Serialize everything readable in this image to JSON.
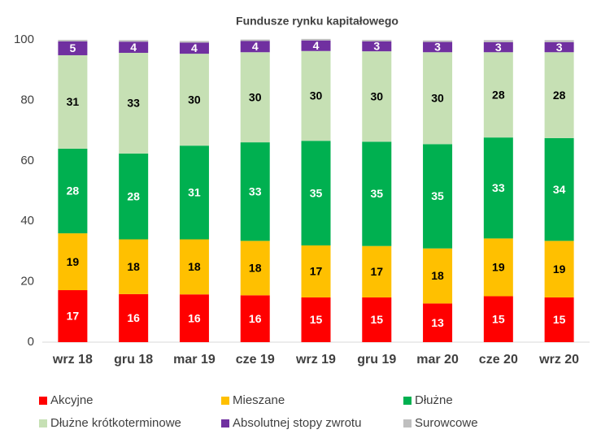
{
  "chart_data": {
    "type": "stacked_bar",
    "title": "Fundusze rynku kapitałowego",
    "categories": [
      "wrz 18",
      "gru 18",
      "mar 19",
      "cze 19",
      "wrz 19",
      "gru 19",
      "mar 20",
      "cze 20",
      "wrz 20"
    ],
    "series": [
      {
        "name": "Akcyjne",
        "color": "#ff0000",
        "label_color": "#ffffff",
        "values": [
          17.2,
          15.9,
          15.8,
          15.5,
          14.8,
          14.8,
          12.8,
          15.2,
          14.8
        ],
        "value_labels": [
          "17",
          "16",
          "16",
          "16",
          "15",
          "15",
          "13",
          "15",
          "15"
        ]
      },
      {
        "name": "Mieszane",
        "color": "#ffc000",
        "label_color": "#000000",
        "values": [
          18.8,
          18.1,
          18.2,
          18.0,
          17.2,
          17.0,
          18.2,
          19.1,
          18.7
        ],
        "value_labels": [
          "19",
          "18",
          "18",
          "18",
          "17",
          "17",
          "18",
          "19",
          "19"
        ]
      },
      {
        "name": "Dłużne",
        "color": "#00b050",
        "label_color": "#ffffff",
        "values": [
          28.0,
          28.4,
          31.0,
          32.6,
          34.6,
          34.5,
          34.5,
          33.4,
          34.0
        ],
        "value_labels": [
          "28",
          "28",
          "31",
          "33",
          "35",
          "35",
          "35",
          "33",
          "34"
        ]
      },
      {
        "name": "Dłużne krótkoterminowe",
        "color": "#c6e0b4",
        "label_color": "#000000",
        "values": [
          30.9,
          33.3,
          30.4,
          29.8,
          29.7,
          29.9,
          30.4,
          28.2,
          28.4
        ],
        "value_labels": [
          "31",
          "33",
          "30",
          "30",
          "30",
          "30",
          "30",
          "28",
          "28"
        ]
      },
      {
        "name": "Absolutnej stopy zwrotu",
        "color": "#7030a0",
        "label_color": "#ffffff",
        "values": [
          4.6,
          3.7,
          3.7,
          3.7,
          3.5,
          3.3,
          3.4,
          3.3,
          3.3
        ],
        "value_labels": [
          "5",
          "4",
          "4",
          "4",
          "4",
          "3",
          "3",
          "3",
          "3"
        ]
      },
      {
        "name": "Surowcowe",
        "color": "#bfbfbf",
        "values": [
          0.5,
          0.5,
          0.5,
          0.5,
          0.5,
          0.5,
          0.5,
          0.7,
          0.7
        ]
      }
    ],
    "ylim": [
      0,
      100
    ],
    "yticks": [
      0,
      20,
      40,
      60,
      80,
      100
    ],
    "grid": false
  }
}
